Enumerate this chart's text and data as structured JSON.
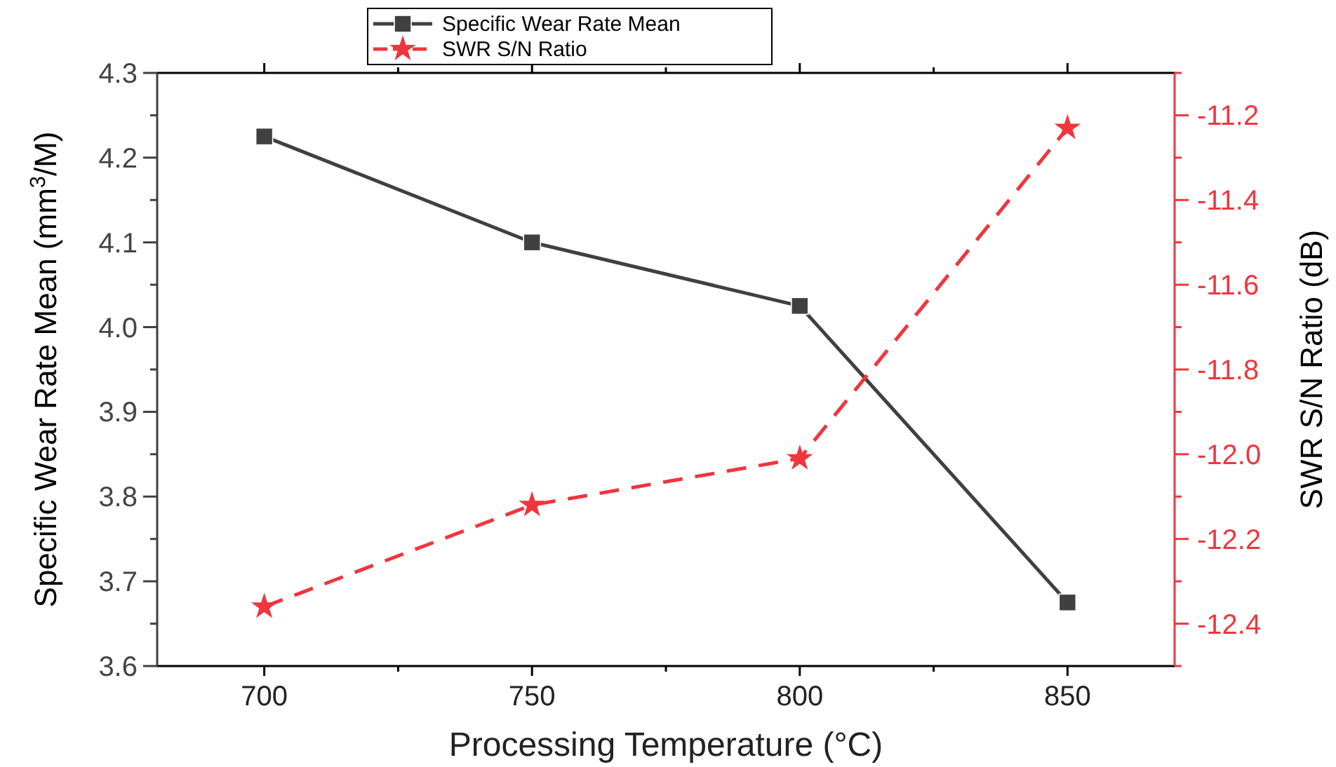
{
  "chart_data": {
    "type": "line",
    "xlabel": "Processing Temperature (°C)",
    "ylabel": "Specific Wear Rate Mean (mm$^{3}$/M)",
    "y2label": "SWR S/N Ratio (dB)",
    "x": [
      700,
      750,
      800,
      850
    ],
    "xlim": [
      680,
      870
    ],
    "xticks": [
      700,
      {
        "value": 725,
        "label": null
      },
      750,
      {
        "value": 775,
        "label": null
      },
      800,
      {
        "value": 825,
        "label": null
      },
      850
    ],
    "ylim": [
      3.6,
      4.3
    ],
    "yticks": [
      3.6,
      3.7,
      3.8,
      3.9,
      "4.0",
      4.1,
      4.2,
      4.3
    ],
    "y2lim": [
      -12.5,
      -11.1
    ],
    "y2ticks": [
      -12.4,
      -12.2,
      "-12.0",
      -11.8,
      -11.6,
      -11.4,
      -11.2
    ],
    "series": [
      {
        "name": "Specific Wear Rate Mean",
        "color": "#404040",
        "values": [
          4.225,
          4.1,
          4.025,
          3.675
        ],
        "marker": "square",
        "line_style": "solid"
      },
      {
        "name": "SWR S/N Ratio",
        "color": "#f0353d",
        "values": [
          -12.36,
          -12.12,
          -12.01,
          -11.23
        ],
        "marker": "star",
        "line_style": "dashed",
        "axis": "y2"
      }
    ],
    "legend": "top",
    "grid": false
  }
}
